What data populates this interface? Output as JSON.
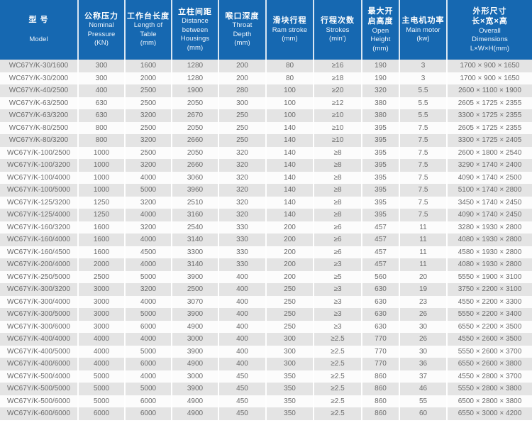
{
  "table": {
    "colors": {
      "header_bg": "#1668b1",
      "header_text": "#ffffff",
      "header_sep": "#d8e6f3",
      "row_odd": "#e4e4e4",
      "row_even": "#fcfcfc",
      "cell_text": "#6b6b6b"
    },
    "headers": [
      {
        "zh": [
          "型 号"
        ],
        "en": [
          "Model"
        ]
      },
      {
        "zh": [
          "公称压力"
        ],
        "en": [
          "Nominal",
          "Pressure",
          "(KN)"
        ]
      },
      {
        "zh": [
          "工作台长度"
        ],
        "en": [
          "Length of",
          "Table",
          "(mm)"
        ]
      },
      {
        "zh": [
          "立柱间距"
        ],
        "en": [
          "Distance",
          "between",
          "Housings",
          "(mm)"
        ]
      },
      {
        "zh": [
          "喉口深度"
        ],
        "en": [
          "Throat",
          "Depth",
          "(mm)"
        ]
      },
      {
        "zh": [
          "滑块行程"
        ],
        "en": [
          "Ram stroke",
          "(mm)"
        ]
      },
      {
        "zh": [
          "行程次数"
        ],
        "en": [
          "Strokes",
          "(min')"
        ]
      },
      {
        "zh": [
          "最大开",
          "启高度"
        ],
        "en": [
          "Open",
          "Height",
          "(mm)"
        ]
      },
      {
        "zh": [
          "主电机功率"
        ],
        "en": [
          "Main motor",
          "(kw)"
        ]
      },
      {
        "zh": [
          "外形尺寸",
          "长×宽×高"
        ],
        "en": [
          "Overall",
          "Dimensions",
          "L×W×H(mm)"
        ]
      }
    ]
  },
  "chart_data": {
    "type": "table",
    "title": "WC67Y/K press brake specifications",
    "columns": [
      "型号 Model",
      "公称压力 Nominal Pressure (KN)",
      "工作台长度 Length of Table (mm)",
      "立柱间距 Distance between Housings (mm)",
      "喉口深度 Throat Depth (mm)",
      "滑块行程 Ram stroke (mm)",
      "行程次数 Strokes (min')",
      "最大开启高度 Open Height (mm)",
      "主电机功率 Main motor (kw)",
      "外形尺寸 长×宽×高 Overall Dimensions L×W×H(mm)"
    ],
    "rows": [
      [
        "WC67Y/K-30/1600",
        "300",
        "1600",
        "1280",
        "200",
        "80",
        "≥16",
        "190",
        "3",
        "1700 × 900 × 1650"
      ],
      [
        "WC67Y/K-30/2000",
        "300",
        "2000",
        "1280",
        "200",
        "80",
        "≥18",
        "190",
        "3",
        "1700 × 900 × 1650"
      ],
      [
        "WC67Y/K-40/2500",
        "400",
        "2500",
        "1900",
        "280",
        "100",
        "≥20",
        "320",
        "5.5",
        "2600 × 1100 × 1900"
      ],
      [
        "WC67Y/K-63/2500",
        "630",
        "2500",
        "2050",
        "300",
        "100",
        "≥12",
        "380",
        "5.5",
        "2605 × 1725 × 2355"
      ],
      [
        "WC67Y/K-63/3200",
        "630",
        "3200",
        "2670",
        "250",
        "100",
        "≥10",
        "380",
        "5.5",
        "3300 × 1725 × 2355"
      ],
      [
        "WC67Y/K-80/2500",
        "800",
        "2500",
        "2050",
        "250",
        "140",
        "≥10",
        "395",
        "7.5",
        "2605 × 1725 × 2355"
      ],
      [
        "WC67Y/K-80/3200",
        "800",
        "3200",
        "2660",
        "250",
        "140",
        "≥10",
        "395",
        "7.5",
        "3300 × 1725 × 2405"
      ],
      [
        "WC67Y/K-100/2500",
        "1000",
        "2500",
        "2050",
        "320",
        "140",
        "≥8",
        "395",
        "7.5",
        "2600 × 1800 × 2540"
      ],
      [
        "WC67Y/K-100/3200",
        "1000",
        "3200",
        "2660",
        "320",
        "140",
        "≥8",
        "395",
        "7.5",
        "3290 × 1740 × 2400"
      ],
      [
        "WC67Y/K-100/4000",
        "1000",
        "4000",
        "3060",
        "320",
        "140",
        "≥8",
        "395",
        "7.5",
        "4090 × 1740 × 2500"
      ],
      [
        "WC67Y/K-100/5000",
        "1000",
        "5000",
        "3960",
        "320",
        "140",
        "≥8",
        "395",
        "7.5",
        "5100 × 1740 × 2800"
      ],
      [
        "WC67Y/K-125/3200",
        "1250",
        "3200",
        "2510",
        "320",
        "140",
        "≥8",
        "395",
        "7.5",
        "3450 × 1740 × 2450"
      ],
      [
        "WC67Y/K-125/4000",
        "1250",
        "4000",
        "3160",
        "320",
        "140",
        "≥8",
        "395",
        "7.5",
        "4090 × 1740 × 2450"
      ],
      [
        "WC67Y/K-160/3200",
        "1600",
        "3200",
        "2540",
        "330",
        "200",
        "≥6",
        "457",
        "11",
        "3280 × 1930 × 2800"
      ],
      [
        "WC67Y/K-160/4000",
        "1600",
        "4000",
        "3140",
        "330",
        "200",
        "≥6",
        "457",
        "11",
        "4080 × 1930 × 2800"
      ],
      [
        "WC67Y/K-160/4500",
        "1600",
        "4500",
        "3300",
        "330",
        "200",
        "≥6",
        "457",
        "11",
        "4580 × 1930 × 2800"
      ],
      [
        "WC67Y/K-200/4000",
        "2000",
        "4000",
        "3140",
        "330",
        "200",
        "≥3",
        "457",
        "11",
        "4080 × 1930 × 2800"
      ],
      [
        "WC67Y/K-250/5000",
        "2500",
        "5000",
        "3900",
        "400",
        "200",
        "≥5",
        "560",
        "20",
        "5550 × 1900 × 3100"
      ],
      [
        "WC67Y/K-300/3200",
        "3000",
        "3200",
        "2500",
        "400",
        "250",
        "≥3",
        "630",
        "19",
        "3750 × 2200 × 3100"
      ],
      [
        "WC67Y/K-300/4000",
        "3000",
        "4000",
        "3070",
        "400",
        "250",
        "≥3",
        "630",
        "23",
        "4550 × 2200 × 3300"
      ],
      [
        "WC67Y/K-300/5000",
        "3000",
        "5000",
        "3900",
        "400",
        "250",
        "≥3",
        "630",
        "26",
        "5550 × 2200 × 3400"
      ],
      [
        "WC67Y/K-300/6000",
        "3000",
        "6000",
        "4900",
        "400",
        "250",
        "≥3",
        "630",
        "30",
        "6550 × 2200 × 3500"
      ],
      [
        "WC67Y/K-400/4000",
        "4000",
        "4000",
        "3000",
        "400",
        "300",
        "≥2.5",
        "770",
        "26",
        "4550 × 2600 × 3500"
      ],
      [
        "WC67Y/K-400/5000",
        "4000",
        "5000",
        "3900",
        "400",
        "300",
        "≥2.5",
        "770",
        "30",
        "5550 × 2600 × 3700"
      ],
      [
        "WC67Y/K-400/6000",
        "4000",
        "6000",
        "4900",
        "400",
        "300",
        "≥2.5",
        "770",
        "36",
        "6550 × 2600 × 3800"
      ],
      [
        "WC67Y/K-500/4000",
        "5000",
        "4000",
        "3000",
        "450",
        "350",
        "≥2.5",
        "860",
        "37",
        "4550 × 2800 × 3700"
      ],
      [
        "WC67Y/K-500/5000",
        "5000",
        "5000",
        "3900",
        "450",
        "350",
        "≥2.5",
        "860",
        "46",
        "5550 × 2800 × 3800"
      ],
      [
        "WC67Y/K-500/6000",
        "5000",
        "6000",
        "4900",
        "450",
        "350",
        "≥2.5",
        "860",
        "55",
        "6500 × 2800 × 3800"
      ],
      [
        "WC67Y/K-600/6000",
        "6000",
        "6000",
        "4900",
        "450",
        "350",
        "≥2.5",
        "860",
        "60",
        "6550 × 3000 × 4200"
      ]
    ]
  }
}
